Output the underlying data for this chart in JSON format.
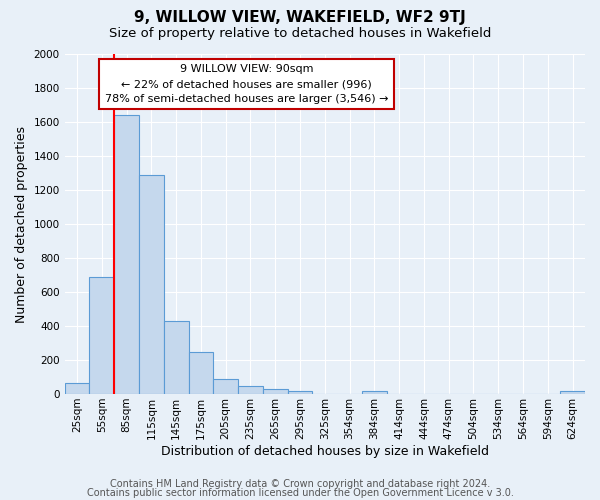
{
  "title": "9, WILLOW VIEW, WAKEFIELD, WF2 9TJ",
  "subtitle": "Size of property relative to detached houses in Wakefield",
  "xlabel": "Distribution of detached houses by size in Wakefield",
  "ylabel": "Number of detached properties",
  "bin_labels": [
    "25sqm",
    "55sqm",
    "85sqm",
    "115sqm",
    "145sqm",
    "175sqm",
    "205sqm",
    "235sqm",
    "265sqm",
    "295sqm",
    "325sqm",
    "354sqm",
    "384sqm",
    "414sqm",
    "444sqm",
    "474sqm",
    "504sqm",
    "534sqm",
    "564sqm",
    "594sqm",
    "624sqm"
  ],
  "bar_values": [
    65,
    690,
    1640,
    1290,
    430,
    250,
    90,
    50,
    30,
    20,
    0,
    0,
    15,
    0,
    0,
    0,
    0,
    0,
    0,
    0,
    15
  ],
  "bar_color": "#c5d8ed",
  "bar_edge_color": "#5b9bd5",
  "ylim": [
    0,
    2000
  ],
  "yticks": [
    0,
    200,
    400,
    600,
    800,
    1000,
    1200,
    1400,
    1600,
    1800,
    2000
  ],
  "property_line_x": 2,
  "annotation_line0": "9 WILLOW VIEW: 90sqm",
  "annotation_line1": "← 22% of detached houses are smaller (996)",
  "annotation_line2": "78% of semi-detached houses are larger (3,546) →",
  "annotation_box_color": "#ffffff",
  "annotation_box_edge": "#c00000",
  "line_color": "#ff0000",
  "footer1": "Contains HM Land Registry data © Crown copyright and database right 2024.",
  "footer2": "Contains public sector information licensed under the Open Government Licence v 3.0.",
  "background_color": "#e8f0f8",
  "plot_bg_color": "#e8f0f8",
  "title_fontsize": 11,
  "subtitle_fontsize": 9.5,
  "axis_label_fontsize": 9,
  "tick_fontsize": 7.5,
  "annotation_fontsize": 8,
  "footer_fontsize": 7
}
